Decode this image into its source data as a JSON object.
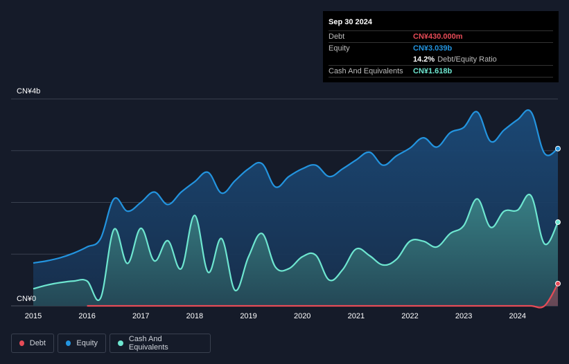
{
  "tooltip": {
    "date": "Sep 30 2024",
    "debt_label": "Debt",
    "debt_value": "CN¥430.000m",
    "equity_label": "Equity",
    "equity_value": "CN¥3.039b",
    "ratio_value": "14.2%",
    "ratio_label": "Debt/Equity Ratio",
    "cash_label": "Cash And Equivalents",
    "cash_value": "CN¥1.618b"
  },
  "legend": {
    "debt": "Debt",
    "equity": "Equity",
    "cash": "Cash And Equivalents"
  },
  "colors": {
    "background": "#151b29",
    "debt": "#e64b57",
    "equity": "#2394df",
    "cash": "#6ee6d0",
    "grid": "#3a4150"
  },
  "chart_data": {
    "type": "area",
    "title": "",
    "xlabel": "",
    "ylabel": "",
    "y_top_label": "CN¥4b",
    "y_bottom_label": "CN¥0",
    "ylim": [
      0,
      4
    ],
    "xlim": [
      2015.0,
      2024.75
    ],
    "x_ticks": [
      "2015",
      "2016",
      "2017",
      "2018",
      "2019",
      "2020",
      "2021",
      "2022",
      "2023",
      "2024"
    ],
    "series": [
      {
        "name": "Equity",
        "x": [
          2015.0,
          2015.25,
          2015.5,
          2015.75,
          2016.0,
          2016.25,
          2016.5,
          2016.75,
          2017.0,
          2017.25,
          2017.5,
          2017.75,
          2018.0,
          2018.25,
          2018.5,
          2018.75,
          2019.0,
          2019.25,
          2019.5,
          2019.75,
          2020.0,
          2020.25,
          2020.5,
          2020.75,
          2021.0,
          2021.25,
          2021.5,
          2021.75,
          2022.0,
          2022.25,
          2022.5,
          2022.75,
          2023.0,
          2023.25,
          2023.5,
          2023.75,
          2024.0,
          2024.25,
          2024.5,
          2024.75
        ],
        "values": [
          0.83,
          0.87,
          0.93,
          1.02,
          1.14,
          1.3,
          2.07,
          1.83,
          2.0,
          2.2,
          1.96,
          2.2,
          2.4,
          2.58,
          2.18,
          2.42,
          2.65,
          2.75,
          2.3,
          2.5,
          2.65,
          2.72,
          2.5,
          2.65,
          2.82,
          2.97,
          2.72,
          2.9,
          3.05,
          3.25,
          3.07,
          3.35,
          3.45,
          3.75,
          3.18,
          3.4,
          3.6,
          3.75,
          2.95,
          3.04
        ]
      },
      {
        "name": "Cash And Equivalents",
        "x": [
          2015.0,
          2015.25,
          2015.5,
          2015.75,
          2016.0,
          2016.25,
          2016.5,
          2016.75,
          2017.0,
          2017.25,
          2017.5,
          2017.75,
          2018.0,
          2018.25,
          2018.5,
          2018.75,
          2019.0,
          2019.25,
          2019.5,
          2019.75,
          2020.0,
          2020.25,
          2020.5,
          2020.75,
          2021.0,
          2021.25,
          2021.5,
          2021.75,
          2022.0,
          2022.25,
          2022.5,
          2022.75,
          2023.0,
          2023.25,
          2023.5,
          2023.75,
          2024.0,
          2024.25,
          2024.5,
          2024.75
        ],
        "values": [
          0.33,
          0.4,
          0.45,
          0.48,
          0.48,
          0.15,
          1.48,
          0.82,
          1.5,
          0.87,
          1.26,
          0.72,
          1.75,
          0.65,
          1.3,
          0.3,
          0.95,
          1.4,
          0.75,
          0.72,
          0.95,
          0.98,
          0.5,
          0.7,
          1.1,
          0.97,
          0.79,
          0.9,
          1.25,
          1.25,
          1.14,
          1.4,
          1.55,
          2.07,
          1.52,
          1.83,
          1.85,
          2.13,
          1.2,
          1.618
        ]
      },
      {
        "name": "Debt",
        "x": [
          2015.0,
          2015.75,
          2016.0,
          2016.5,
          2017.0,
          2018.0,
          2019.0,
          2020.0,
          2021.0,
          2022.0,
          2023.0,
          2024.0,
          2024.25,
          2024.5,
          2024.75
        ],
        "values": [
          null,
          null,
          0.0,
          0.0,
          0.0,
          0.0,
          0.0,
          0.0,
          0.0,
          0.0,
          0.0,
          0.0,
          0.0,
          0.0,
          0.43
        ]
      }
    ]
  }
}
